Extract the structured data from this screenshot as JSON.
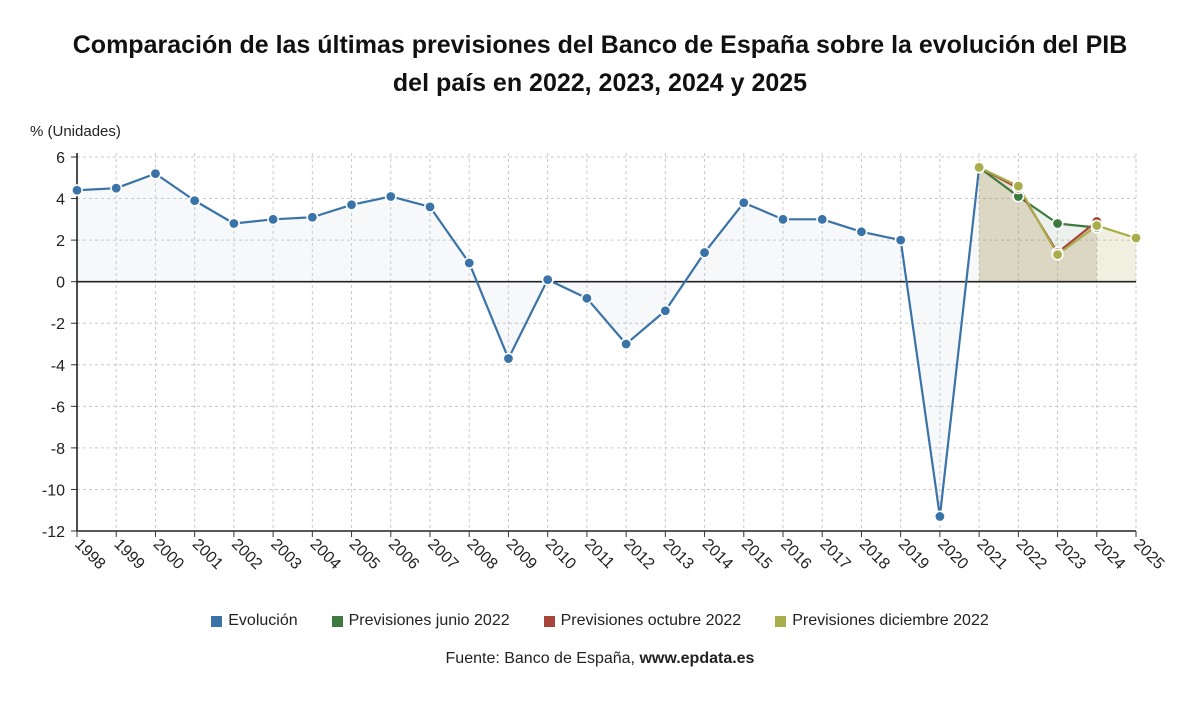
{
  "title": {
    "line1": "Comparación de las últimas previsiones del Banco de España sobre la evolución del PIB",
    "line2": "del país en 2022, 2023, 2024 y 2025"
  },
  "source": {
    "label": "Fuente: Banco de España,",
    "site": "www.epdata.es"
  },
  "chart_data": {
    "type": "line",
    "ylabel": "% (Unidades)",
    "xlabel": "",
    "ylim": [
      -12,
      6
    ],
    "yticks": [
      6,
      4,
      2,
      0,
      -2,
      -4,
      -6,
      -8,
      -10,
      -12
    ],
    "grid": true,
    "legend_position": "bottom",
    "categories": [
      "1998",
      "1999",
      "2000",
      "2001",
      "2002",
      "2003",
      "2004",
      "2005",
      "2006",
      "2007",
      "2008",
      "2009",
      "2010",
      "2011",
      "2012",
      "2013",
      "2014",
      "2015",
      "2016",
      "2017",
      "2018",
      "2019",
      "2020",
      "2021",
      "2022",
      "2023",
      "2024",
      "2025"
    ],
    "series": [
      {
        "name": "Evolución",
        "color": "#3a73a8",
        "x": [
          "1998",
          "1999",
          "2000",
          "2001",
          "2002",
          "2003",
          "2004",
          "2005",
          "2006",
          "2007",
          "2008",
          "2009",
          "2010",
          "2011",
          "2012",
          "2013",
          "2014",
          "2015",
          "2016",
          "2017",
          "2018",
          "2019",
          "2020",
          "2021"
        ],
        "values": [
          4.4,
          4.5,
          5.2,
          3.9,
          2.8,
          3.0,
          3.1,
          3.7,
          4.1,
          3.6,
          0.9,
          -3.7,
          0.1,
          -0.8,
          -3.0,
          -1.4,
          1.4,
          3.8,
          3.0,
          3.0,
          2.4,
          2.0,
          -11.3,
          5.5
        ]
      },
      {
        "name": "Previsiones junio 2022",
        "color": "#3d7a3d",
        "x": [
          "2021",
          "2022",
          "2023",
          "2024"
        ],
        "values": [
          5.5,
          4.1,
          2.8,
          2.6
        ]
      },
      {
        "name": "Previsiones octubre 2022",
        "color": "#a8453a",
        "x": [
          "2021",
          "2022",
          "2023",
          "2024"
        ],
        "values": [
          5.5,
          4.5,
          1.4,
          2.9
        ]
      },
      {
        "name": "Previsiones diciembre 2022",
        "color": "#a9ad4a",
        "x": [
          "2021",
          "2022",
          "2023",
          "2024",
          "2025"
        ],
        "values": [
          5.5,
          4.6,
          1.3,
          2.7,
          2.1
        ]
      }
    ]
  }
}
